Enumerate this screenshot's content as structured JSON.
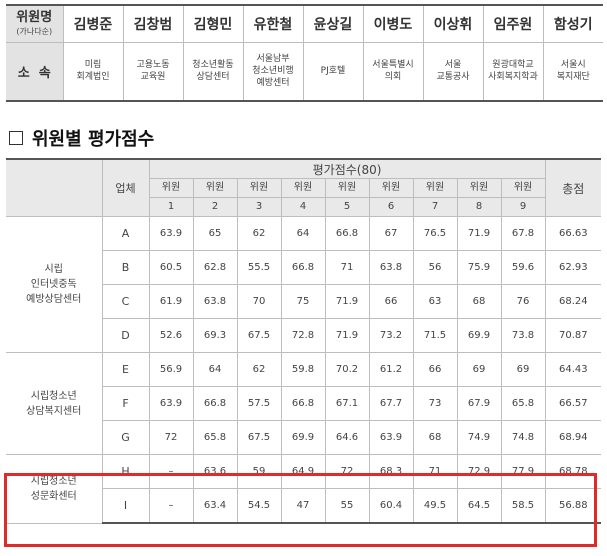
{
  "members_table": {
    "label": "위원명",
    "label_sub": "(가나다순)",
    "org_label": "소  속",
    "members": [
      {
        "name": "김병준",
        "org": [
          "미림",
          "회계법인"
        ]
      },
      {
        "name": "김창범",
        "org": [
          "고용노동",
          "교육원"
        ]
      },
      {
        "name": "김형민",
        "org": [
          "청소년활동",
          "상담센터"
        ]
      },
      {
        "name": "유한철",
        "org": [
          "서울남부",
          "청소년비행",
          "예방센터"
        ]
      },
      {
        "name": "윤상길",
        "org": [
          "PJ호텔"
        ]
      },
      {
        "name": "이병도",
        "org": [
          "서울특별시",
          "의회"
        ]
      },
      {
        "name": "이상휘",
        "org": [
          "서울",
          "교통공사"
        ]
      },
      {
        "name": "임주원",
        "org": [
          "원광대학교",
          "사회복지학과"
        ]
      },
      {
        "name": "함성기",
        "org": [
          "서울시",
          "복지재단"
        ]
      }
    ]
  },
  "section_title": "위원별 평가점수",
  "score_table": {
    "col_business": "업체",
    "col_eval": "평가점수(80)",
    "col_total": "총점",
    "jurors": [
      {
        "l1": "위원",
        "l2": "1"
      },
      {
        "l1": "위원",
        "l2": "2"
      },
      {
        "l1": "위원",
        "l2": "3"
      },
      {
        "l1": "위원",
        "l2": "4"
      },
      {
        "l1": "위원",
        "l2": "5"
      },
      {
        "l1": "위원",
        "l2": "6"
      },
      {
        "l1": "위원",
        "l2": "7"
      },
      {
        "l1": "위원",
        "l2": "8"
      },
      {
        "l1": "위원",
        "l2": "9"
      }
    ],
    "groups": [
      {
        "name": [
          "시립",
          "인터넷중독",
          "예방상담센터"
        ],
        "rows": [
          {
            "biz": "A",
            "scores": [
              "63.9",
              "65",
              "62",
              "64",
              "66.8",
              "67",
              "76.5",
              "71.9",
              "67.8"
            ],
            "total": "66.63"
          },
          {
            "biz": "B",
            "scores": [
              "60.5",
              "62.8",
              "55.5",
              "66.8",
              "71",
              "63.8",
              "56",
              "75.9",
              "59.6"
            ],
            "total": "62.93"
          },
          {
            "biz": "C",
            "scores": [
              "61.9",
              "63.8",
              "70",
              "75",
              "71.9",
              "66",
              "63",
              "68",
              "76"
            ],
            "total": "68.24"
          },
          {
            "biz": "D",
            "scores": [
              "52.6",
              "69.3",
              "67.5",
              "72.8",
              "71.9",
              "73.2",
              "71.5",
              "69.9",
              "73.8"
            ],
            "total": "70.87"
          }
        ]
      },
      {
        "name": [
          "시립청소년",
          "상담복지센터"
        ],
        "rows": [
          {
            "biz": "E",
            "scores": [
              "56.9",
              "64",
              "62",
              "59.8",
              "70.2",
              "61.2",
              "66",
              "69",
              "69"
            ],
            "total": "64.43"
          },
          {
            "biz": "F",
            "scores": [
              "63.9",
              "66.8",
              "57.5",
              "66.8",
              "67.1",
              "67.7",
              "73",
              "67.9",
              "65.8"
            ],
            "total": "66.57"
          },
          {
            "biz": "G",
            "scores": [
              "72",
              "65.8",
              "67.5",
              "69.9",
              "64.6",
              "63.9",
              "68",
              "74.9",
              "74.8"
            ],
            "total": "68.94"
          }
        ]
      },
      {
        "name": [
          "시립청소년",
          "성문화센터"
        ],
        "highlighted": true,
        "rows": [
          {
            "biz": "H",
            "scores": [
              "–",
              "63.6",
              "59",
              "64.9",
              "72",
              "68.3",
              "71",
              "72.9",
              "77.9"
            ],
            "total": "68.78"
          },
          {
            "biz": "I",
            "scores": [
              "–",
              "63.4",
              "54.5",
              "47",
              "55",
              "60.4",
              "49.5",
              "64.5",
              "58.5"
            ],
            "total": "56.88"
          }
        ]
      }
    ]
  }
}
